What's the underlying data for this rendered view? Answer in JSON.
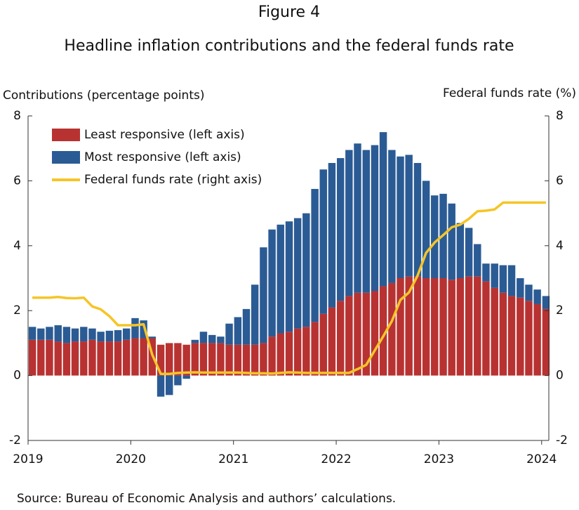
{
  "chart_data": {
    "type": "bar-line",
    "title": "Figure 4",
    "subtitle": "Headline inflation contributions and the federal funds rate",
    "y_label": "Contributions (percentage points)",
    "y2_label": "Federal funds rate (%)",
    "source": "Source: Bureau of Economic Analysis and authors’ calculations.",
    "x": [
      2019.042,
      2019.125,
      2019.208,
      2019.292,
      2019.375,
      2019.458,
      2019.542,
      2019.625,
      2019.708,
      2019.792,
      2019.875,
      2019.958,
      2020.042,
      2020.125,
      2020.208,
      2020.292,
      2020.375,
      2020.458,
      2020.542,
      2020.625,
      2020.708,
      2020.792,
      2020.875,
      2020.958,
      2021.042,
      2021.125,
      2021.208,
      2021.292,
      2021.375,
      2021.458,
      2021.542,
      2021.625,
      2021.708,
      2021.792,
      2021.875,
      2021.958,
      2022.042,
      2022.125,
      2022.208,
      2022.292,
      2022.375,
      2022.458,
      2022.542,
      2022.625,
      2022.708,
      2022.792,
      2022.875,
      2022.958,
      2023.042,
      2023.125,
      2023.208,
      2023.292,
      2023.375,
      2023.458,
      2023.542,
      2023.625,
      2023.708,
      2023.792,
      2023.875,
      2023.958,
      2024.042
    ],
    "xlim": [
      2019,
      2024.07
    ],
    "xticks": [
      2019,
      2020,
      2021,
      2022,
      2023,
      2024
    ],
    "ylim": [
      -2,
      8
    ],
    "yticks": [
      -2,
      0,
      2,
      4,
      6,
      8
    ],
    "y2lim": [
      -2,
      8
    ],
    "y2ticks": [
      -2,
      0,
      2,
      4,
      6,
      8
    ],
    "legend": "upper left",
    "series": [
      {
        "name": "Least responsive (left axis)",
        "type": "bar",
        "color": "#b83232",
        "values": [
          1.1,
          1.1,
          1.1,
          1.05,
          1.0,
          1.05,
          1.05,
          1.1,
          1.05,
          1.05,
          1.05,
          1.1,
          1.15,
          1.15,
          1.15,
          0.95,
          1.0,
          1.0,
          0.95,
          1.0,
          1.0,
          1.0,
          1.0,
          0.95,
          0.95,
          0.95,
          0.95,
          1.0,
          1.2,
          1.3,
          1.35,
          1.45,
          1.5,
          1.65,
          1.9,
          2.1,
          2.3,
          2.45,
          2.55,
          2.55,
          2.6,
          2.75,
          2.85,
          3.0,
          3.05,
          3.05,
          3.0,
          3.0,
          3.0,
          2.95,
          3.0,
          3.05,
          3.05,
          2.9,
          2.7,
          2.55,
          2.45,
          2.4,
          2.3,
          2.2,
          2.05
        ]
      },
      {
        "name": "Most responsive (left axis)",
        "type": "bar",
        "color": "#2b5b94",
        "values": [
          0.4,
          0.35,
          0.4,
          0.5,
          0.5,
          0.4,
          0.45,
          0.35,
          0.3,
          0.33,
          0.35,
          0.35,
          0.62,
          0.55,
          0.05,
          -0.65,
          -0.6,
          -0.3,
          -0.1,
          0.1,
          0.35,
          0.25,
          0.2,
          0.65,
          0.85,
          1.1,
          1.85,
          2.95,
          3.3,
          3.35,
          3.4,
          3.4,
          3.5,
          4.1,
          4.45,
          4.45,
          4.4,
          4.5,
          4.6,
          4.4,
          4.5,
          4.75,
          4.1,
          3.75,
          3.75,
          3.5,
          3.0,
          2.55,
          2.6,
          2.35,
          1.7,
          1.5,
          1.0,
          0.55,
          0.75,
          0.85,
          0.95,
          0.6,
          0.5,
          0.45,
          0.4
        ]
      },
      {
        "name": "Federal funds rate (right axis)",
        "type": "line",
        "axis": "y2",
        "color": "#f5c527",
        "values": [
          2.4,
          2.4,
          2.4,
          2.42,
          2.39,
          2.38,
          2.4,
          2.13,
          2.04,
          1.83,
          1.55,
          1.55,
          1.55,
          1.58,
          0.65,
          0.05,
          0.05,
          0.08,
          0.09,
          0.1,
          0.09,
          0.09,
          0.09,
          0.09,
          0.09,
          0.08,
          0.07,
          0.07,
          0.06,
          0.08,
          0.1,
          0.09,
          0.08,
          0.08,
          0.08,
          0.08,
          0.08,
          0.08,
          0.2,
          0.33,
          0.77,
          1.21,
          1.68,
          2.33,
          2.56,
          3.08,
          3.78,
          4.1,
          4.33,
          4.57,
          4.65,
          4.83,
          5.06,
          5.08,
          5.12,
          5.33,
          5.33,
          5.33,
          5.33,
          5.33,
          5.33
        ]
      }
    ]
  }
}
